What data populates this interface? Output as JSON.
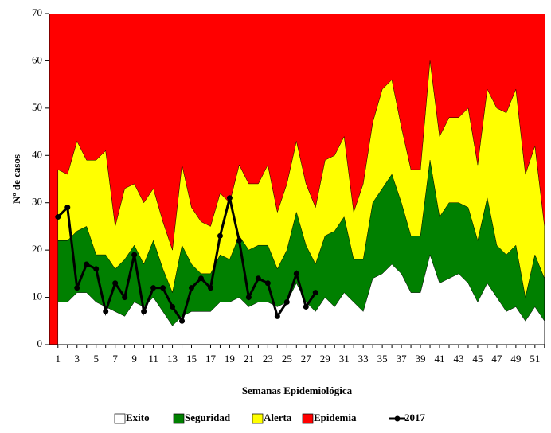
{
  "chart_data": {
    "type": "epidemic-channel",
    "x_label": "Semanas Epidemiológica",
    "y_label": "Nº de casos",
    "x": [
      1,
      2,
      3,
      4,
      5,
      6,
      7,
      8,
      9,
      10,
      11,
      12,
      13,
      14,
      15,
      16,
      17,
      18,
      19,
      20,
      21,
      22,
      23,
      24,
      25,
      26,
      27,
      28,
      29,
      30,
      31,
      32,
      33,
      34,
      35,
      36,
      37,
      38,
      39,
      40,
      41,
      42,
      43,
      44,
      45,
      46,
      47,
      48,
      49,
      50,
      51,
      52
    ],
    "xlim": [
      0.1,
      52.1
    ],
    "xticks": [
      1,
      3,
      5,
      7,
      9,
      11,
      13,
      15,
      17,
      19,
      21,
      23,
      25,
      27,
      29,
      31,
      33,
      35,
      37,
      39,
      41,
      43,
      45,
      47,
      49,
      51
    ],
    "ylim": [
      0,
      70
    ],
    "yticks": [
      0,
      10,
      20,
      30,
      40,
      50,
      60,
      70
    ],
    "series": [
      {
        "name": "Exito",
        "color": "#ffffff",
        "values": [
          9,
          9,
          11,
          11,
          9,
          8,
          7,
          6,
          9,
          8,
          10,
          7,
          4,
          6,
          7,
          7,
          7,
          9,
          9,
          10,
          8,
          9,
          9,
          8,
          9,
          13,
          9,
          7,
          10,
          8,
          11,
          9,
          7,
          14,
          15,
          17,
          15,
          11,
          11,
          19,
          13,
          14,
          15,
          13,
          9,
          13,
          10,
          7,
          8,
          5,
          8,
          5
        ]
      },
      {
        "name": "Seguridad",
        "color": "#008000",
        "values": [
          22,
          22,
          24,
          25,
          19,
          19,
          16,
          18,
          21,
          17,
          22,
          16,
          11,
          21,
          17,
          15,
          15,
          19,
          18,
          23,
          20,
          21,
          21,
          16,
          20,
          28,
          21,
          17,
          23,
          24,
          27,
          18,
          18,
          30,
          33,
          36,
          30,
          23,
          23,
          39,
          27,
          30,
          30,
          29,
          22,
          31,
          21,
          19,
          21,
          10,
          19,
          14
        ]
      },
      {
        "name": "Alerta",
        "color": "#ffff00",
        "values": [
          37,
          36,
          43,
          39,
          39,
          41,
          25,
          33,
          34,
          30,
          33,
          26,
          20,
          38,
          29,
          26,
          25,
          32,
          30,
          38,
          34,
          34,
          38,
          28,
          34,
          43,
          34,
          29,
          39,
          40,
          44,
          28,
          34,
          47,
          54,
          56,
          46,
          37,
          37,
          60,
          44,
          48,
          48,
          50,
          38,
          54,
          50,
          49,
          54,
          36,
          42,
          25
        ]
      },
      {
        "name": "Epidemia",
        "color": "#ff0000"
      },
      {
        "name": "2017",
        "color": "#000000",
        "values": [
          27,
          29,
          12,
          17,
          16,
          7,
          13,
          10,
          19,
          7,
          12,
          12,
          8,
          5,
          12,
          14,
          12,
          23,
          31,
          22,
          10,
          14,
          13,
          6,
          9,
          15,
          8,
          11,
          null,
          null,
          null,
          null,
          null,
          null,
          null,
          null,
          null,
          null,
          null,
          null,
          null,
          null,
          null,
          null,
          null,
          null,
          null,
          null,
          null,
          null,
          null,
          null
        ]
      }
    ]
  }
}
